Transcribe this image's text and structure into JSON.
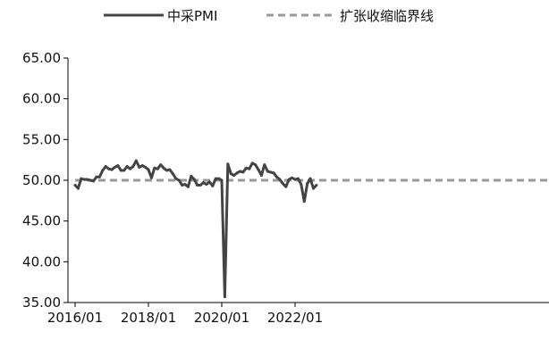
{
  "chart_data": {
    "type": "line",
    "title": "",
    "xlabel": "",
    "ylabel": "",
    "ylim": [
      35,
      65
    ],
    "y_ticks": [
      "35.00",
      "40.00",
      "45.00",
      "50.00",
      "55.00",
      "60.00",
      "65.00"
    ],
    "x_tick_labels": [
      "2016/01",
      "2018/01",
      "2020/01",
      "2022/01"
    ],
    "legend_position": "top-center",
    "grid": false,
    "series": [
      {
        "name": "中采PMI",
        "color": "#444444",
        "style": "solid",
        "x": [
          "2016/01",
          "2016/02",
          "2016/03",
          "2016/04",
          "2016/05",
          "2016/06",
          "2016/07",
          "2016/08",
          "2016/09",
          "2016/10",
          "2016/11",
          "2016/12",
          "2017/01",
          "2017/02",
          "2017/03",
          "2017/04",
          "2017/05",
          "2017/06",
          "2017/07",
          "2017/08",
          "2017/09",
          "2017/10",
          "2017/11",
          "2017/12",
          "2018/01",
          "2018/02",
          "2018/03",
          "2018/04",
          "2018/05",
          "2018/06",
          "2018/07",
          "2018/08",
          "2018/09",
          "2018/10",
          "2018/11",
          "2018/12",
          "2019/01",
          "2019/02",
          "2019/03",
          "2019/04",
          "2019/05",
          "2019/06",
          "2019/07",
          "2019/08",
          "2019/09",
          "2019/10",
          "2019/11",
          "2019/12",
          "2020/01",
          "2020/02",
          "2020/03",
          "2020/04",
          "2020/05",
          "2020/06",
          "2020/07",
          "2020/08",
          "2020/09",
          "2020/10",
          "2020/11",
          "2020/12",
          "2021/01",
          "2021/02",
          "2021/03",
          "2021/04",
          "2021/05",
          "2021/06",
          "2021/07",
          "2021/08",
          "2021/09",
          "2021/10",
          "2021/11",
          "2021/12",
          "2022/01",
          "2022/02",
          "2022/03",
          "2022/04",
          "2022/05",
          "2022/06",
          "2022/07",
          "2022/08"
        ],
        "values": [
          49.4,
          49.0,
          50.2,
          50.1,
          50.1,
          50.0,
          49.9,
          50.4,
          50.4,
          51.2,
          51.7,
          51.4,
          51.3,
          51.6,
          51.8,
          51.2,
          51.2,
          51.7,
          51.4,
          51.7,
          52.4,
          51.6,
          51.8,
          51.6,
          51.3,
          50.3,
          51.5,
          51.4,
          51.9,
          51.5,
          51.2,
          51.3,
          50.8,
          50.2,
          50.0,
          49.4,
          49.5,
          49.2,
          50.5,
          50.1,
          49.4,
          49.4,
          49.7,
          49.5,
          49.8,
          49.3,
          50.2,
          50.2,
          50.0,
          35.7,
          52.0,
          50.8,
          50.6,
          50.9,
          51.1,
          51.0,
          51.5,
          51.4,
          52.1,
          51.9,
          51.3,
          50.6,
          51.9,
          51.1,
          51.0,
          50.9,
          50.4,
          50.1,
          49.6,
          49.2,
          50.1,
          50.3,
          50.1,
          50.2,
          49.5,
          47.4,
          49.6,
          50.2,
          49.0,
          49.4
        ]
      },
      {
        "name": "扩张收缩临界线",
        "color": "#999999",
        "style": "dashed",
        "constant": 50
      }
    ]
  }
}
